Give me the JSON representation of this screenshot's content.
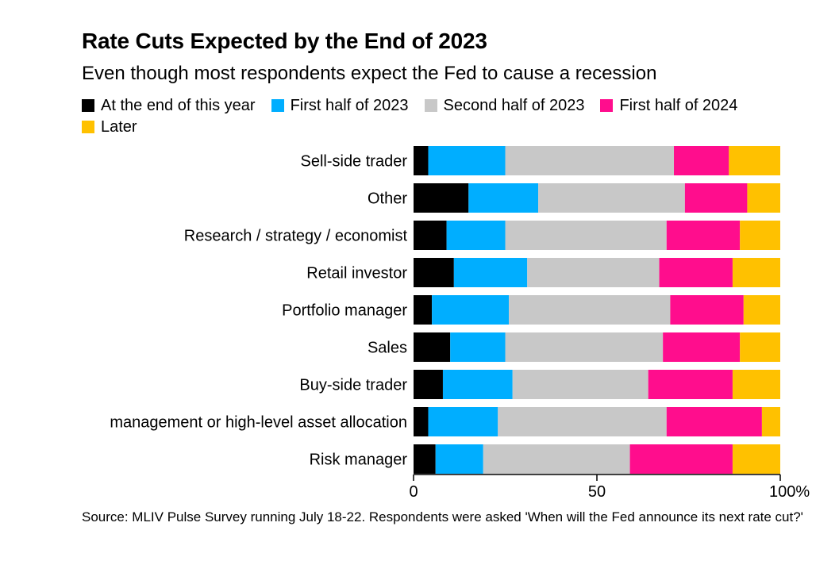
{
  "header": {
    "title": "Rate Cuts Expected by the End of 2023",
    "subtitle": "Even though most respondents expect the Fed to cause a recession"
  },
  "footer": {
    "source": "Source: MLIV Pulse Survey running July 18-22. Respondents were asked 'When will the Fed announce its next rate cut?'"
  },
  "chart_data": {
    "type": "bar",
    "orientation": "horizontal",
    "stacked": true,
    "categories": [
      "Sell-side trader",
      "Other",
      "Research / strategy / economist",
      "Retail investor",
      "Portfolio manager",
      "Sales",
      "Buy-side trader",
      "management or high-level asset allocation",
      "Risk manager"
    ],
    "series": [
      {
        "name": "At the end of this year",
        "color": "#000000",
        "values": [
          4,
          15,
          9,
          11,
          5,
          10,
          8,
          4,
          6
        ]
      },
      {
        "name": "First half of 2023",
        "color": "#00aeff",
        "values": [
          21,
          19,
          16,
          20,
          21,
          15,
          19,
          19,
          13
        ]
      },
      {
        "name": "Second half of 2023",
        "color": "#c8c8c8",
        "values": [
          46,
          40,
          44,
          36,
          44,
          43,
          37,
          46,
          40
        ]
      },
      {
        "name": "First half of 2024",
        "color": "#ff0d8d",
        "values": [
          15,
          17,
          20,
          20,
          20,
          21,
          23,
          26,
          28
        ]
      },
      {
        "name": "Later",
        "color": "#ffc100",
        "values": [
          14,
          9,
          11,
          13,
          10,
          11,
          13,
          5,
          13
        ]
      }
    ],
    "xlim": [
      0,
      100
    ],
    "xticks": [
      {
        "value": 0,
        "label": "0"
      },
      {
        "value": 50,
        "label": "50"
      },
      {
        "value": 100,
        "label": "100%"
      }
    ],
    "grid": false,
    "legend_position": "top"
  }
}
